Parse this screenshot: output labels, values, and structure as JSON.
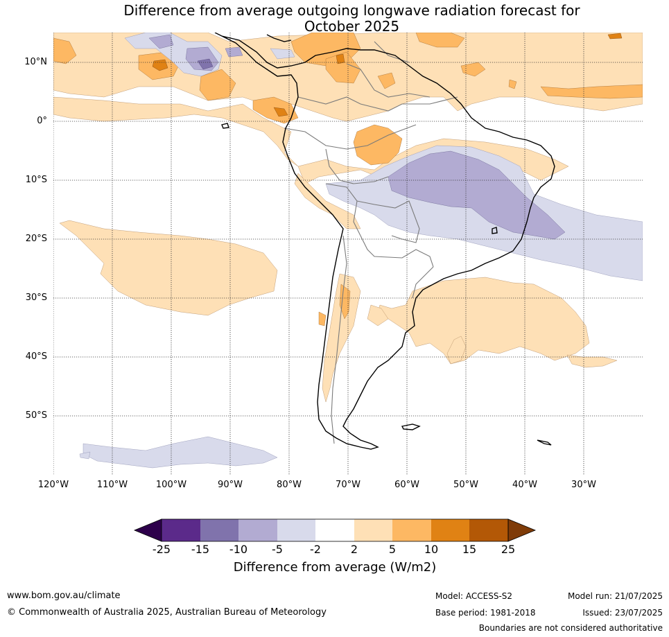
{
  "title": {
    "line1": "Difference from average outgoing longwave radiation forecast for",
    "line2": "October 2025"
  },
  "axes": {
    "lat_labels": [
      "10°N",
      "0°",
      "10°S",
      "20°S",
      "30°S",
      "40°S",
      "50°S"
    ],
    "lon_labels": [
      "120°W",
      "110°W",
      "100°W",
      "90°W",
      "80°W",
      "70°W",
      "60°W",
      "50°W",
      "40°W",
      "30°W"
    ]
  },
  "colorbar": {
    "ticks": [
      "-25",
      "-15",
      "-10",
      "-5",
      "-2",
      "2",
      "5",
      "10",
      "15",
      "25"
    ],
    "title": "Difference from average (W/m2)",
    "colors": {
      "below_min": "#2d004b",
      "bins": [
        "#5b2a8a",
        "#8073ac",
        "#b2abd2",
        "#d8daeb",
        "#ffffff",
        "#fee0b6",
        "#fdb863",
        "#e08214",
        "#b35806"
      ],
      "above_max": "#7f3b08"
    }
  },
  "footer": {
    "website": "www.bom.gov.au/climate",
    "copyright": "© Commonwealth of Australia 2025, Australian Bureau of Meteorology",
    "model": "Model: ACCESS-S2",
    "base_period": "Base period: 1981-2018",
    "model_run": "Model run: 21/07/2025",
    "issued": "Issued: 23/07/2025",
    "disclaimer": "Boundaries are not considered authoritative"
  }
}
